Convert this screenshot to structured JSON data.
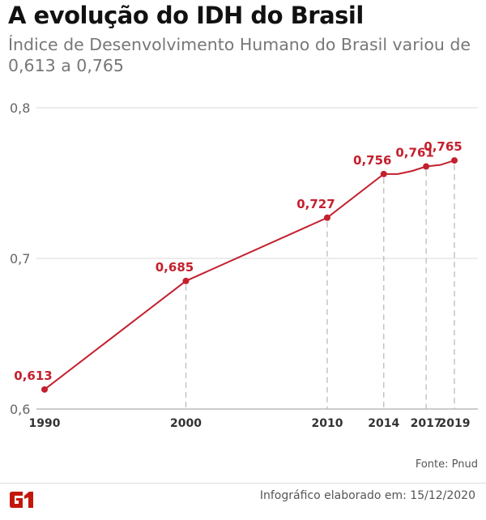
{
  "header": {
    "title": "A evolução do IDH do Brasil",
    "subtitle": "Índice de Desenvolvimento Humano do Brasil variou de 0,613 a 0,765"
  },
  "footer": {
    "source": "Fonte:  Pnud",
    "credit": "Infográfico elaborado em: 15/12/2020",
    "logo": "G1"
  },
  "colors": {
    "line": "#c4202e",
    "label": "#c4202e",
    "grid": "#d9d9d9",
    "logo": "#c4170c"
  },
  "chart_data": {
    "type": "line",
    "title": "A evolução do IDH do Brasil",
    "xlim": [
      1990,
      2019
    ],
    "ylim": [
      0.6,
      0.8
    ],
    "y_ticks": [
      {
        "value": 0.6,
        "label": "0,6"
      },
      {
        "value": 0.7,
        "label": "0,7"
      },
      {
        "value": 0.8,
        "label": "0,8"
      }
    ],
    "x_ticks": [
      {
        "value": 1990,
        "label": "1990"
      },
      {
        "value": 2000,
        "label": "2000"
      },
      {
        "value": 2010,
        "label": "2010"
      },
      {
        "value": 2014,
        "label": "2014"
      },
      {
        "value": 2017,
        "label": "2017"
      },
      {
        "value": 2019,
        "label": "2019"
      }
    ],
    "grid": "horizontal",
    "series": [
      {
        "points": [
          {
            "x": 1990,
            "y": 0.613,
            "label": "0,613"
          },
          {
            "x": 2000,
            "y": 0.685,
            "label": "0,685"
          },
          {
            "x": 2010,
            "y": 0.727,
            "label": "0,727"
          },
          {
            "x": 2014,
            "y": 0.756,
            "label": "0,756"
          },
          {
            "x": 2015,
            "y": 0.756
          },
          {
            "x": 2016,
            "y": 0.758
          },
          {
            "x": 2017,
            "y": 0.761,
            "label": "0,761"
          },
          {
            "x": 2018,
            "y": 0.762
          },
          {
            "x": 2019,
            "y": 0.765,
            "label": "0,765"
          }
        ]
      }
    ]
  }
}
